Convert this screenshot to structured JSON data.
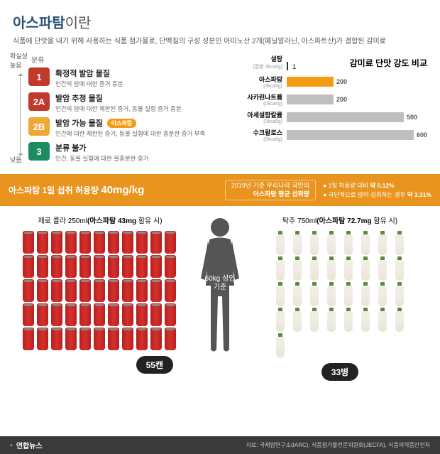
{
  "header": {
    "title_main": "아스파탐",
    "title_suffix": "이란",
    "subtitle": "식품에 단맛을 내기 위해 사용하는 식품 첨가물로, 단백질의 구성 성분인 아미노산 2개(페닐알라닌, 아스파트산)가 결합된 감미료"
  },
  "classification": {
    "header": "분류",
    "axis_top": "확실성\n높음",
    "axis_bottom": "낮음",
    "items": [
      {
        "badge": "1",
        "color": "#c0392b",
        "title": "확정적 발암 물질",
        "desc": "인간의 암에 대한 증거 충분",
        "tag": null
      },
      {
        "badge": "2A",
        "color": "#c0392b",
        "title": "발암 추정 물질",
        "desc": "인간의 암에 대한 제한된 증거, 동물 실험 증거 충분",
        "tag": null
      },
      {
        "badge": "2B",
        "color": "#f1a735",
        "title": "발암 가능 물질",
        "desc": "인간에 대한 제한된 증거, 동물 실험에 대한 충분한 증거 부족",
        "tag": "아스파탐"
      },
      {
        "badge": "3",
        "color": "#1e8b63",
        "title": "분류 불가",
        "desc": "인간, 동물 실험에 대한 불충분한 증거",
        "tag": null
      }
    ]
  },
  "chart": {
    "title": "감미료 단맛 강도 비교",
    "ref_label": "설탕",
    "ref_sub": "(열량 4kcal/g)",
    "ref_value": "1",
    "max": 600,
    "items": [
      {
        "label": "아스파탐",
        "sub": "(4kcal/g)",
        "value": 200,
        "color": "#f39c12",
        "bold": true
      },
      {
        "label": "사카린나트륨",
        "sub": "(0kcal/g)",
        "value": 200,
        "color": "#bfbfbf",
        "bold": false
      },
      {
        "label": "아세설팜칼륨",
        "sub": "(0kcal/g)",
        "value": 500,
        "color": "#bfbfbf",
        "bold": false
      },
      {
        "label": "수크랄로스",
        "sub": "(0kcal/g)",
        "value": 600,
        "color": "#bfbfbf",
        "bold": false
      }
    ]
  },
  "band": {
    "left_pre": "아스파탐 1일 섭취 허용량 ",
    "left_big": "40mg/kg",
    "mid_line1": "2019년 기준 우리나라 국민의",
    "mid_line2": "아스파탐 평균 섭취량",
    "right1_label": "● 1일 허용량 대비 ",
    "right1_val": "약 0.12%",
    "right2_label": "● 극단적으로 많이 섭취하는 경우 ",
    "right2_val": "약 3.31%"
  },
  "bottom": {
    "cans": {
      "title_pre": "제로 콜라 250ml",
      "title_bold": "(아스파탐 43mg ",
      "title_suf": "함유 시)",
      "count": 55,
      "badge": "55캔"
    },
    "person": {
      "line1": "60kg 성인",
      "line2": "기준"
    },
    "bottles": {
      "title_pre": "탁주 750ml",
      "title_bold": "(아스파탐 72.7mg ",
      "title_suf": "함유 시)",
      "count": 33,
      "badge": "33병"
    }
  },
  "footer": {
    "logo": "연합뉴스",
    "source": "자료: 국제암연구소(IARC), 식품첨가물전문위원회(JECFA), 식품의약품안전처"
  },
  "colors": {
    "accent": "#e8941e",
    "title": "#2b5278"
  }
}
